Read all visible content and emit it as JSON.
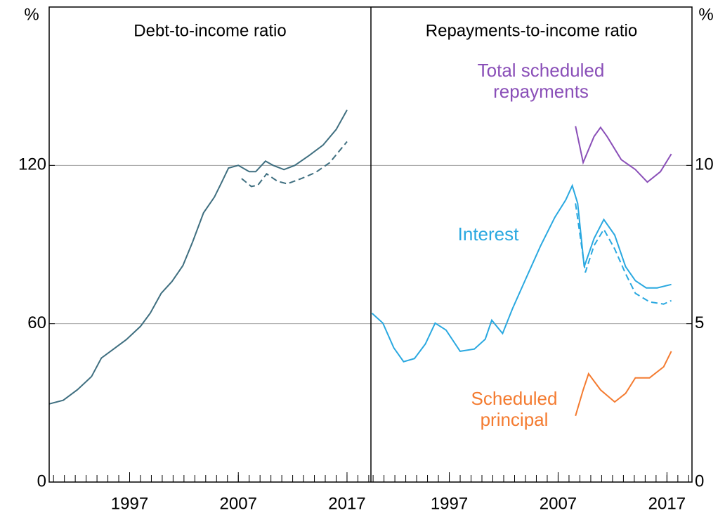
{
  "chart_data": [
    {
      "type": "line",
      "title": "Debt-to-income ratio",
      "y_label": "%",
      "yaxis_side": "left",
      "xlim": [
        1989.6,
        2019.2
      ],
      "xticks": [
        1997,
        2007,
        2017
      ],
      "xminorticks": [
        1990,
        1991,
        1992,
        1993,
        1994,
        1995,
        1996,
        1997,
        1998,
        1999,
        2000,
        2001,
        2002,
        2003,
        2004,
        2005,
        2006,
        2007,
        2008,
        2009,
        2010,
        2011,
        2012,
        2013,
        2014,
        2015,
        2016,
        2017,
        2018,
        2019
      ],
      "ylim": [
        0,
        180
      ],
      "yticks": [
        0,
        60,
        120
      ],
      "grid": true,
      "series": [
        {
          "color": "#3f6f80",
          "dashed": false,
          "x": [
            1989.6,
            1990.9,
            1992.2,
            1993.5,
            1994.4,
            1995.4,
            1996.7,
            1998.0,
            1998.9,
            1999.9,
            2000.9,
            2001.9,
            2002.8,
            2003.8,
            2004.8,
            2005.4,
            2006.1,
            2007.0,
            2008.0,
            2008.6,
            2009.5,
            2010.2,
            2011.2,
            2012.2,
            2013.5,
            2014.8,
            2016.0,
            2017.0
          ],
          "values": [
            29.6,
            31,
            35,
            40,
            47,
            50,
            54,
            59,
            64,
            71.5,
            76,
            82,
            91,
            102,
            108,
            113,
            119,
            120,
            117.6,
            117.6,
            121.6,
            120,
            118.4,
            120,
            123.7,
            127.7,
            133.6,
            141
          ]
        },
        {
          "color": "#3f6f80",
          "dashed": true,
          "x": [
            2007.3,
            2008.2,
            2008.8,
            2009.6,
            2010.6,
            2011.5,
            2012.8,
            2014.1,
            2015.4,
            2017.0
          ],
          "values": [
            115,
            112,
            112.5,
            116.8,
            114,
            113,
            115,
            117.3,
            121,
            129
          ]
        }
      ]
    },
    {
      "type": "line",
      "title": "Repayments-to-income ratio",
      "y_label": "%",
      "yaxis_side": "right",
      "xlim": [
        1989.8,
        2019.3
      ],
      "xticks": [
        1997,
        2007,
        2017
      ],
      "xminorticks": [
        1990,
        1991,
        1992,
        1993,
        1994,
        1995,
        1996,
        1997,
        1998,
        1999,
        2000,
        2001,
        2002,
        2003,
        2004,
        2005,
        2006,
        2007,
        2008,
        2009,
        2010,
        2011,
        2012,
        2013,
        2014,
        2015,
        2016,
        2017,
        2018,
        2019
      ],
      "ylim": [
        0,
        15
      ],
      "yticks": [
        0,
        5,
        10
      ],
      "grid": true,
      "series": [
        {
          "name": "Total scheduled repayments",
          "color": "#8a4fb8",
          "dashed": false,
          "x": [
            2008.6,
            2009.3,
            2010.3,
            2010.9,
            2011.5,
            2012.8,
            2014.1,
            2015.2,
            2016.4,
            2017.4
          ],
          "values": [
            11.24,
            10.09,
            10.91,
            11.2,
            10.91,
            10.18,
            9.87,
            9.47,
            9.8,
            10.36
          ]
        },
        {
          "name": "Interest",
          "color": "#29a8e0",
          "dashed": false,
          "x": [
            1989.9,
            1990.9,
            1991.9,
            1992.8,
            1993.8,
            1994.8,
            1995.7,
            1996.7,
            1998.0,
            1999.3,
            2000.3,
            2000.9,
            2001.9,
            2002.8,
            2004.1,
            2005.4,
            2006.7,
            2007.7,
            2008.3,
            2008.8,
            2009.4,
            2010.3,
            2011.2,
            2012.2,
            2013.2,
            2014.1,
            2015.1,
            2016.1,
            2017.4
          ],
          "values": [
            5.33,
            5.02,
            4.24,
            3.8,
            3.9,
            4.36,
            5.02,
            4.8,
            4.13,
            4.2,
            4.51,
            5.11,
            4.69,
            5.47,
            6.47,
            7.47,
            8.36,
            8.91,
            9.36,
            8.8,
            6.8,
            7.69,
            8.29,
            7.8,
            6.8,
            6.36,
            6.13,
            6.13,
            6.24
          ]
        },
        {
          "color": "#29a8e0",
          "dashed": true,
          "x": [
            2008.6,
            2009.5,
            2010.3,
            2011.2,
            2012.2,
            2013.2,
            2014.1,
            2015.4,
            2016.7,
            2017.4
          ],
          "values": [
            8.8,
            6.62,
            7.47,
            7.98,
            7.36,
            6.58,
            5.96,
            5.69,
            5.62,
            5.73
          ]
        },
        {
          "name": "Scheduled principal",
          "color": "#f47b30",
          "dashed": false,
          "x": [
            2008.6,
            2009.3,
            2009.8,
            2010.9,
            2012.2,
            2013.2,
            2014.1,
            2015.4,
            2016.7,
            2017.4
          ],
          "values": [
            2.09,
            2.91,
            3.42,
            2.91,
            2.53,
            2.8,
            3.29,
            3.29,
            3.64,
            4.13
          ]
        }
      ]
    }
  ]
}
